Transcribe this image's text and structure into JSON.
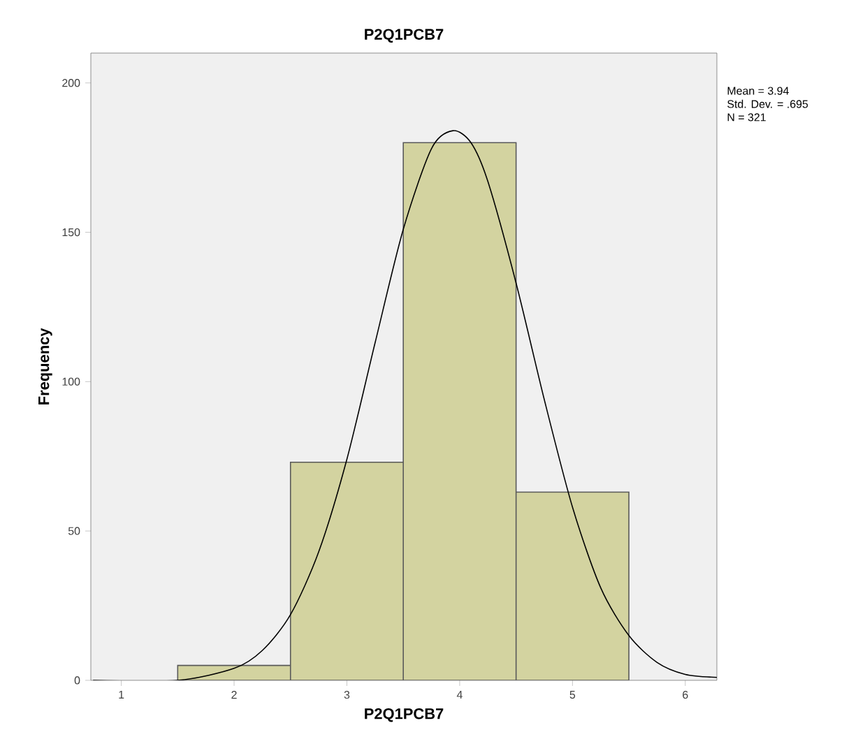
{
  "chart_data": {
    "type": "histogram",
    "title": "P2Q1PCB7",
    "xlabel": "P2Q1PCB7",
    "ylabel": "Frequency",
    "bins": [
      1.5,
      2.5,
      3.5,
      4.5,
      5.5
    ],
    "values": [
      5,
      73,
      180,
      63
    ],
    "color": "#d3d3a0",
    "series": [
      {
        "type": "line",
        "color": "#000000",
        "x": [
          0.75,
          1.5,
          2.0,
          2.25,
          2.5,
          2.75,
          3.0,
          3.25,
          3.5,
          3.75,
          3.94,
          4.1,
          4.25,
          4.5,
          4.75,
          5.0,
          5.25,
          5.5,
          5.75,
          6.0,
          6.28
        ],
        "values": [
          0,
          0,
          4,
          10,
          22,
          43,
          74,
          113,
          151,
          178,
          184,
          180,
          167,
          133,
          94,
          58,
          31,
          15,
          6,
          2,
          1
        ]
      }
    ],
    "xlim": [
      0.73,
      6.28
    ],
    "ylim": [
      0,
      210
    ],
    "xticks": [
      1,
      2,
      3,
      4,
      5,
      6
    ],
    "yticks": [
      0,
      50,
      100,
      150,
      200
    ],
    "grid": false,
    "annotations": [
      "Mean = 3.94",
      "Std. Dev. = .695",
      "N = 321"
    ]
  }
}
